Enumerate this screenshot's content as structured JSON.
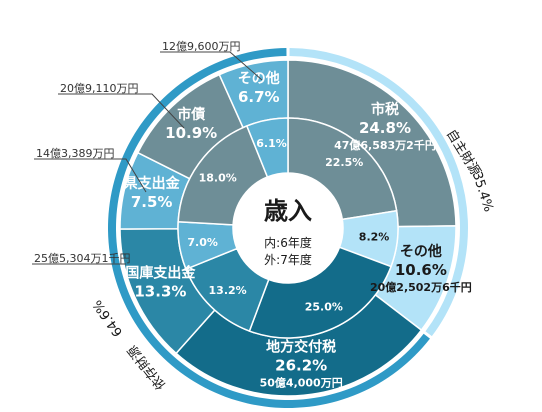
{
  "chart_data": {
    "type": "pie",
    "style": "double-donut",
    "center": {
      "title": "歳入",
      "line1": "内:6年度",
      "line2": "外:7年度"
    },
    "outer_ring": [
      {
        "label": "市税",
        "percent": "24.8%",
        "amount": "47億6,583万2千円",
        "value": 24.8,
        "color": "#6e8e97"
      },
      {
        "label": "その他",
        "percent": "10.6%",
        "amount": "20億2,502万6千円",
        "value": 10.6,
        "color": "#b3e3f8"
      },
      {
        "label": "地方交付税",
        "percent": "26.2%",
        "amount": "50億4,000万円",
        "value": 26.2,
        "color": "#136c8a"
      },
      {
        "label": "国庫支出金",
        "percent": "13.3%",
        "amount": "25億5,304万1千円",
        "value": 13.3,
        "color": "#2b87a6"
      },
      {
        "label": "県支出金",
        "percent": "7.5%",
        "amount": "14億3,389万円",
        "value": 7.5,
        "color": "#5fb2d4"
      },
      {
        "label": "市債",
        "percent": "10.9%",
        "amount": "20億9,110万円",
        "value": 10.9,
        "color": "#6e8e97"
      },
      {
        "label": "その他",
        "percent": "6.7%",
        "amount": "12億9,600万円",
        "value": 6.7,
        "color": "#5fb2d4"
      }
    ],
    "inner_ring": [
      {
        "label": "22.5%",
        "value": 22.5,
        "color": "#6e8e97"
      },
      {
        "label": "8.2%",
        "value": 8.2,
        "color": "#b3e3f8"
      },
      {
        "label": "25.0%",
        "value": 25.0,
        "color": "#136c8a"
      },
      {
        "label": "13.2%",
        "value": 13.2,
        "color": "#2b87a6"
      },
      {
        "label": "7.0%",
        "value": 7.0,
        "color": "#5fb2d4"
      },
      {
        "label": "18.0%",
        "value": 18.0,
        "color": "#6e8e97"
      },
      {
        "label": "6.1%",
        "value": 6.1,
        "color": "#5fb2d4"
      }
    ],
    "groups": [
      {
        "label": "自主財源",
        "percent": "35.4%",
        "color": "#b3e3f8"
      },
      {
        "label": "依存財源",
        "percent": "64.6%",
        "color": "#2f9ac6"
      }
    ]
  }
}
